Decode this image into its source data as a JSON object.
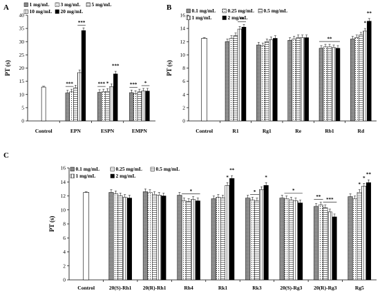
{
  "chart_data": [
    {
      "panel": "A",
      "type": "bar",
      "ylabel": "PT (s)",
      "ylim": [
        0,
        40
      ],
      "yticks": [
        0,
        5,
        10,
        15,
        20,
        25,
        30,
        35,
        40
      ],
      "control": {
        "label": "Control",
        "value": 12.8
      },
      "legend": [
        "1 mg/mL",
        "3 mg/mL",
        "5 mg/mL",
        "10 mg/mL",
        "20 mg/mL"
      ],
      "groups": [
        {
          "label": "EPN",
          "values": [
            10.6,
            11.0,
            12.5,
            18.3,
            34.2
          ]
        },
        {
          "label": "ESPN",
          "values": [
            10.8,
            11.0,
            11.2,
            13.0,
            17.8
          ]
        },
        {
          "label": "EMPN",
          "values": [
            10.7,
            10.4,
            11.0,
            11.3,
            11.3
          ]
        }
      ],
      "annotations": [
        {
          "text": "***",
          "group": 0,
          "from": 0,
          "to": 1
        },
        {
          "text": "***",
          "group": 0,
          "from": 3,
          "to": 4
        },
        {
          "text": "***",
          "group": 1,
          "from": 0,
          "to": 1
        },
        {
          "text": "*",
          "group": 1,
          "from": 2,
          "to": 2
        },
        {
          "text": "***",
          "group": 1,
          "from": 4,
          "to": 4
        },
        {
          "text": "***",
          "group": 2,
          "from": 0,
          "to": 1
        },
        {
          "text": "*",
          "group": 2,
          "from": 3,
          "to": 4
        }
      ]
    },
    {
      "panel": "B",
      "type": "bar",
      "ylabel": "PT (s)",
      "ylim": [
        0,
        16
      ],
      "yticks": [
        0,
        2,
        4,
        6,
        8,
        10,
        12,
        14,
        16
      ],
      "control": {
        "label": "Control",
        "value": 12.5
      },
      "legend": [
        "0.1 mg/mL",
        "0.25 mg/mL",
        "0.5 mg/mL",
        "1 mg/mL",
        "2 mg/mL"
      ],
      "groups": [
        {
          "label": "R1",
          "values": [
            12.0,
            12.5,
            12.9,
            13.9,
            14.2
          ]
        },
        {
          "label": "Rg1",
          "values": [
            11.5,
            11.4,
            12.0,
            12.3,
            12.5
          ]
        },
        {
          "label": "Re",
          "values": [
            12.2,
            12.4,
            12.6,
            12.6,
            12.6
          ]
        },
        {
          "label": "Rb1",
          "values": [
            11.0,
            11.2,
            11.2,
            11.1,
            11.0
          ]
        },
        {
          "label": "Rd",
          "values": [
            12.4,
            12.6,
            13.0,
            13.6,
            15.1
          ]
        }
      ],
      "annotations": [
        {
          "text": "**",
          "group": 0,
          "from": 3,
          "to": 4
        },
        {
          "text": "**",
          "group": 3,
          "from": 0,
          "to": 4
        },
        {
          "text": "*",
          "group": 4,
          "from": 3,
          "to": 3
        },
        {
          "text": "**",
          "group": 4,
          "from": 4,
          "to": 4
        }
      ]
    },
    {
      "panel": "C",
      "type": "bar",
      "ylabel": "PT (s)",
      "ylim": [
        0,
        16
      ],
      "yticks": [
        0,
        2,
        4,
        6,
        8,
        10,
        12,
        14,
        16
      ],
      "control": {
        "label": "Control",
        "value": 12.5
      },
      "legend": [
        "0.1 mg/mL",
        "0.25 mg/mL",
        "0.5 mg/mL",
        "1 mg/mL",
        "2 mg/mL"
      ],
      "groups": [
        {
          "label": "20(S)-Rh1",
          "values": [
            12.5,
            12.3,
            12.0,
            11.8,
            11.7
          ]
        },
        {
          "label": "20(R)-Rh1",
          "values": [
            12.6,
            12.5,
            12.2,
            12.1,
            12.0
          ]
        },
        {
          "label": "Rh4",
          "values": [
            12.1,
            11.3,
            11.2,
            11.5,
            11.3
          ]
        },
        {
          "label": "Rk1",
          "values": [
            11.6,
            11.8,
            11.7,
            13.5,
            14.5
          ]
        },
        {
          "label": "Rk3",
          "values": [
            11.7,
            11.4,
            11.3,
            12.9,
            13.5
          ]
        },
        {
          "label": "20(S)-Rg3",
          "values": [
            11.7,
            11.6,
            11.4,
            11.3,
            11.0
          ]
        },
        {
          "label": "20(R)-Rg3",
          "values": [
            10.5,
            10.7,
            10.3,
            9.7,
            9.0
          ]
        },
        {
          "label": "Rg5",
          "values": [
            11.9,
            11.6,
            12.5,
            13.4,
            13.9
          ]
        }
      ],
      "annotations": [
        {
          "text": "*",
          "group": 2,
          "from": 1,
          "to": 4
        },
        {
          "text": "*",
          "group": 3,
          "from": 3,
          "to": 3
        },
        {
          "text": "**",
          "group": 3,
          "from": 4,
          "to": 4
        },
        {
          "text": "*",
          "group": 4,
          "from": 1,
          "to": 2
        },
        {
          "text": "*",
          "group": 4,
          "from": 4,
          "to": 4
        },
        {
          "text": "*",
          "group": 5,
          "from": 1,
          "to": 4
        },
        {
          "text": "**",
          "group": 6,
          "from": 0,
          "to": 1
        },
        {
          "text": "***",
          "group": 6,
          "from": 2,
          "to": 4
        },
        {
          "text": "*",
          "group": 7,
          "from": 2,
          "to": 2
        },
        {
          "text": "*",
          "group": 7,
          "from": 3,
          "to": 3
        },
        {
          "text": "**",
          "group": 7,
          "from": 4,
          "to": 4
        }
      ]
    }
  ]
}
